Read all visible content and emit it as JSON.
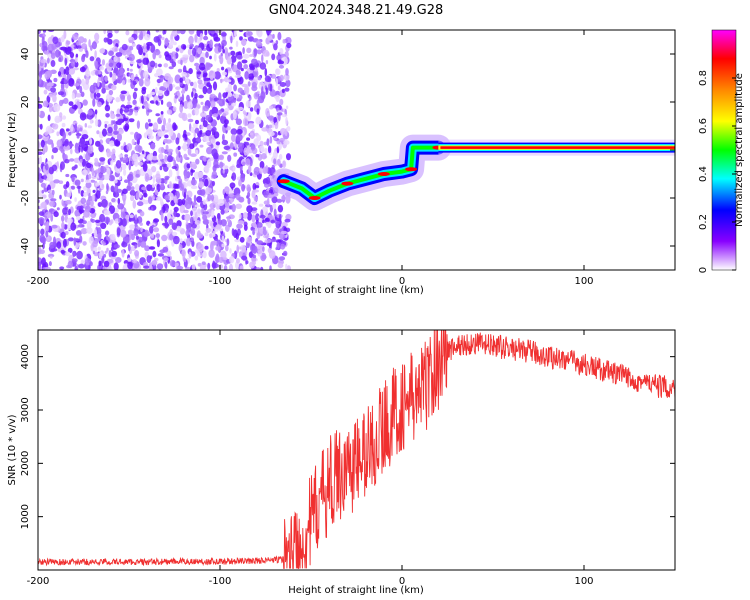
{
  "title": "GN04.2024.348.21.49.G28",
  "chart_data": [
    {
      "type": "heatmap",
      "xlabel": "Height of straight line (km)",
      "ylabel": "Frequency (Hz)",
      "xlim": [
        -200,
        150
      ],
      "ylim": [
        -50,
        50
      ],
      "x_ticks": [
        -200,
        -100,
        0,
        100
      ],
      "y_ticks": [
        -40,
        -20,
        0,
        20,
        40
      ],
      "colorbar": {
        "label": "Normalized spectral amplitude",
        "range": [
          0,
          1
        ],
        "ticks": [
          0,
          0.2,
          0.4,
          0.6,
          0.8
        ],
        "colors": [
          "#ffffff",
          "#8800ff",
          "#0000ff",
          "#00ffff",
          "#00ff00",
          "#ffff00",
          "#ff8800",
          "#ff0000",
          "#ff00ff"
        ]
      },
      "features": [
        {
          "region": "noise",
          "x_range": [
            -200,
            -60
          ],
          "y_range": [
            -50,
            50
          ]
        },
        {
          "region": "signal",
          "points": [
            [
              -65,
              -13
            ],
            [
              -55,
              -16
            ],
            [
              -48,
              -20
            ],
            [
              -40,
              -17
            ],
            [
              -30,
              -14
            ],
            [
              -20,
              -12
            ],
            [
              -10,
              -10
            ],
            [
              0,
              -9
            ],
            [
              5,
              -8
            ],
            [
              6,
              1
            ],
            [
              20,
              1
            ],
            [
              150,
              1
            ]
          ]
        }
      ]
    },
    {
      "type": "line",
      "xlabel": "Height of straight line (km)",
      "ylabel": "SNR (10 * v/v)",
      "xlim": [
        -200,
        150
      ],
      "ylim": [
        0,
        4500
      ],
      "x_ticks": [
        -200,
        -100,
        0,
        100
      ],
      "y_ticks": [
        1000,
        2000,
        3000,
        4000
      ],
      "color": "#f03030",
      "series": [
        {
          "x": [
            -200,
            -180,
            -160,
            -140,
            -120,
            -100,
            -80,
            -65,
            -60,
            -55,
            -50,
            -45,
            -40,
            -35,
            -30,
            -25,
            -20,
            -15,
            -10,
            -5,
            0,
            5,
            10,
            15,
            20,
            25,
            30,
            40,
            50,
            60,
            70,
            80,
            90,
            100,
            110,
            120,
            130,
            140,
            150
          ],
          "values": [
            150,
            150,
            150,
            150,
            160,
            160,
            170,
            200,
            300,
            500,
            900,
            1300,
            1600,
            1800,
            1900,
            2000,
            2200,
            2400,
            2700,
            2900,
            3100,
            3200,
            3300,
            3600,
            3900,
            4100,
            4200,
            4250,
            4200,
            4150,
            4100,
            4000,
            3950,
            3850,
            3750,
            3650,
            3550,
            3450,
            3400
          ]
        }
      ]
    }
  ]
}
